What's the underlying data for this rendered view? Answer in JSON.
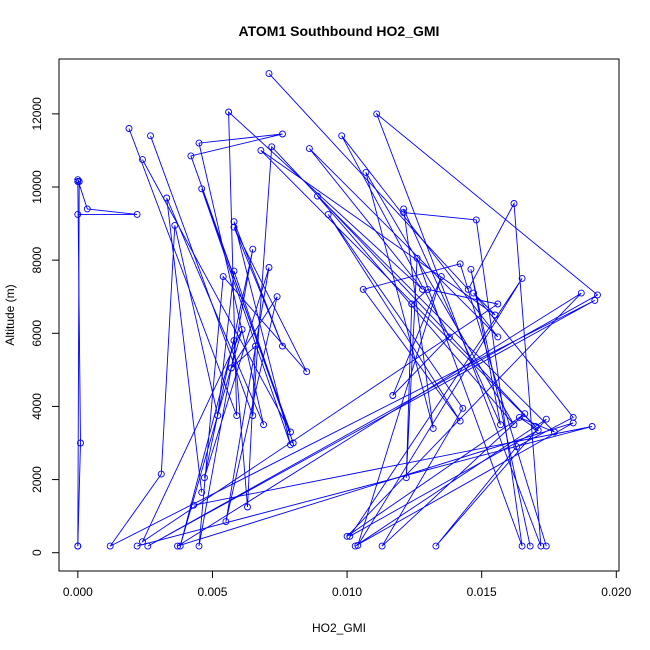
{
  "chart_data": {
    "type": "line",
    "title": "ATOM1 Southbound HO2_GMI",
    "xlabel": "HO2_GMI",
    "ylabel": "Altitude (m)",
    "xlim": [
      -0.0007,
      0.0201
    ],
    "ylim": [
      -500,
      13500
    ],
    "xticks": [
      0.0,
      0.005,
      0.01,
      0.015,
      0.02
    ],
    "xtick_labels": [
      "0.000",
      "0.005",
      "0.010",
      "0.015",
      "0.020"
    ],
    "yticks": [
      0,
      2000,
      4000,
      6000,
      8000,
      10000,
      12000
    ],
    "ytick_labels": [
      "0",
      "2000",
      "4000",
      "6000",
      "8000",
      "10000",
      "12000"
    ],
    "series_color": "#0000ff",
    "series": [
      {
        "name": "",
        "style": "lines+points",
        "points": [
          [
            0.0,
            180
          ],
          [
            5e-05,
            10150
          ],
          [
            0.0,
            10200
          ],
          [
            0.00035,
            9400
          ],
          [
            0.0022,
            9250
          ],
          [
            0.0,
            9250
          ]
        ]
      },
      {
        "name": "",
        "style": "lines+points",
        "points": [
          [
            0.0,
            10150
          ],
          [
            0.0001,
            3000
          ],
          [
            0.0,
            180
          ]
        ]
      },
      {
        "name": "",
        "style": "lines+points",
        "points": [
          [
            0.0071,
            13100
          ],
          [
            0.0145,
            7200
          ],
          [
            0.0162,
            9550
          ],
          [
            0.0172,
            180
          ],
          [
            0.0111,
            12000
          ],
          [
            0.0193,
            7050
          ],
          [
            0.0026,
            180
          ],
          [
            0.0192,
            6900
          ],
          [
            0.0012,
            180
          ],
          [
            0.0031,
            2150
          ],
          [
            0.0036,
            8950
          ],
          [
            0.0052,
            3750
          ],
          [
            0.0058,
            7700
          ],
          [
            0.008,
            3000
          ],
          [
            0.0042,
            10850
          ],
          [
            0.0076,
            11450
          ],
          [
            0.0045,
            11200
          ],
          [
            0.0069,
            3500
          ],
          [
            0.0033,
            9700
          ],
          [
            0.0046,
            1650
          ]
        ]
      },
      {
        "name": "",
        "style": "lines+points",
        "points": [
          [
            0.0019,
            11600
          ],
          [
            0.0059,
            3750
          ],
          [
            0.0056,
            12050
          ],
          [
            0.0128,
            7200
          ],
          [
            0.0086,
            11050
          ],
          [
            0.0156,
            5900
          ],
          [
            0.0098,
            11400
          ],
          [
            0.0138,
            5900
          ],
          [
            0.0117,
            4300
          ],
          [
            0.0135,
            7550
          ],
          [
            0.0104,
            200
          ],
          [
            0.0165,
            7500
          ],
          [
            0.0101,
            450
          ],
          [
            0.0171,
            3350
          ],
          [
            0.0164,
            3700
          ],
          [
            0.0177,
            3300
          ],
          [
            0.0089,
            9750
          ],
          [
            0.0162,
            3500
          ],
          [
            0.0107,
            10400
          ],
          [
            0.0132,
            3400
          ],
          [
            0.0121,
            9400
          ],
          [
            0.0157,
            3500
          ],
          [
            0.0146,
            7750
          ],
          [
            0.0168,
            180
          ]
        ]
      },
      {
        "name": "",
        "style": "lines+points",
        "points": [
          [
            0.0027,
            11400
          ],
          [
            0.0065,
            3750
          ],
          [
            0.0072,
            11100
          ],
          [
            0.017,
            3450
          ],
          [
            0.0068,
            11000
          ],
          [
            0.0155,
            6500
          ],
          [
            0.0147,
            7100
          ],
          [
            0.0184,
            3700
          ],
          [
            0.0163,
            2900
          ],
          [
            0.0133,
            180
          ],
          [
            0.0174,
            3650
          ],
          [
            0.0103,
            180
          ],
          [
            0.0184,
            3550
          ],
          [
            0.0037,
            180
          ],
          [
            0.0187,
            7100
          ],
          [
            0.01,
            450
          ],
          [
            0.0166,
            3800
          ],
          [
            0.0113,
            180
          ],
          [
            0.0143,
            3950
          ],
          [
            0.0093,
            9250
          ],
          [
            0.0142,
            3600
          ],
          [
            0.0106,
            7200
          ],
          [
            0.0142,
            7900
          ],
          [
            0.0174,
            180
          ]
        ]
      },
      {
        "name": "",
        "style": "lines+points",
        "points": [
          [
            0.0024,
            10750
          ],
          [
            0.0079,
            3300
          ],
          [
            0.0046,
            9950
          ],
          [
            0.0079,
            2950
          ],
          [
            0.0058,
            9050
          ],
          [
            0.0076,
            5650
          ],
          [
            0.0058,
            8900
          ],
          [
            0.0085,
            4950
          ],
          [
            0.0054,
            7550
          ],
          [
            0.0045,
            180
          ],
          [
            0.0065,
            8300
          ],
          [
            0.0047,
            2050
          ],
          [
            0.0071,
            7800
          ],
          [
            0.0055,
            850
          ],
          [
            0.0074,
            7000
          ],
          [
            0.0057,
            5050
          ],
          [
            0.0066,
            5650
          ],
          [
            0.0063,
            1250
          ],
          [
            0.0058,
            5800
          ],
          [
            0.0038,
            180
          ],
          [
            0.0061,
            6100
          ],
          [
            0.0024,
            300
          ],
          [
            0.0156,
            6800
          ],
          [
            0.013,
            7200
          ],
          [
            0.0124,
            6800
          ],
          [
            0.0122,
            2050
          ],
          [
            0.0126,
            8050
          ],
          [
            0.0165,
            180
          ],
          [
            0.0148,
            9100
          ],
          [
            0.0121,
            9300
          ]
        ]
      },
      {
        "name": "",
        "style": "lines+points",
        "points": [
          [
            0.0022,
            180
          ],
          [
            0.0191,
            3450
          ],
          [
            0.0043,
            1300
          ]
        ]
      }
    ]
  }
}
